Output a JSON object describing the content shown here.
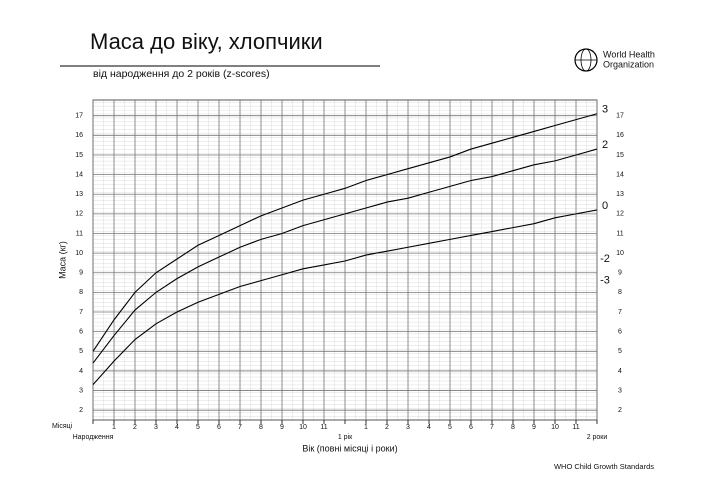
{
  "chart_data": {
    "type": "line",
    "title": "Маса до віку, хлопчики",
    "subtitle": "від народження до 2 років (z-scores)",
    "organization": [
      "World Health",
      "Organization"
    ],
    "y_label": "Маса (кг)",
    "x_label": "Вік (повні місяці і роки)",
    "x_unit_label": "Місяці",
    "footer": "WHO Child Growth Standards",
    "x": [
      0,
      1,
      2,
      3,
      4,
      5,
      6,
      7,
      8,
      9,
      10,
      11,
      12,
      13,
      14,
      15,
      16,
      17,
      18,
      19,
      20,
      21,
      22,
      23,
      24
    ],
    "xlim": [
      0,
      24
    ],
    "xticks": [
      1,
      2,
      3,
      4,
      5,
      6,
      7,
      8,
      9,
      10,
      11,
      {
        "value": 13,
        "label": "1"
      },
      {
        "value": 14,
        "label": "2"
      },
      {
        "value": 15,
        "label": "3"
      },
      {
        "value": 16,
        "label": "4"
      },
      {
        "value": 17,
        "label": "5"
      },
      {
        "value": 18,
        "label": "6"
      },
      {
        "value": 19,
        "label": "7"
      },
      {
        "value": 20,
        "label": "8"
      },
      {
        "value": 21,
        "label": "9"
      },
      {
        "value": 22,
        "label": "10"
      },
      {
        "value": 23,
        "label": "11"
      }
    ],
    "xticks_major": [
      {
        "value": 0,
        "label": "Народження"
      },
      {
        "value": 12,
        "label": "1 рік"
      },
      {
        "value": 24,
        "label": "2 роки"
      }
    ],
    "ylim": [
      1.5,
      17.8
    ],
    "yticks": [
      2,
      3,
      4,
      5,
      6,
      7,
      8,
      9,
      10,
      11,
      12,
      13,
      14,
      15,
      16,
      17
    ],
    "grid": true,
    "series": [
      {
        "name": "3",
        "color": "#000000",
        "values": [
          5.0,
          6.6,
          8.0,
          9.0,
          9.7,
          10.4,
          10.9,
          11.4,
          11.9,
          12.3,
          12.7,
          13.0,
          13.3,
          13.7,
          14.0,
          14.3,
          14.6,
          14.9,
          15.3,
          15.6,
          15.9,
          16.2,
          16.5,
          16.8,
          17.1
        ]
      },
      {
        "name": "2",
        "color": "#000000",
        "values": [
          4.4,
          5.8,
          7.1,
          8.0,
          8.7,
          9.3,
          9.8,
          10.3,
          10.7,
          11.0,
          11.4,
          11.7,
          12.0,
          12.3,
          12.6,
          12.8,
          13.1,
          13.4,
          13.7,
          13.9,
          14.2,
          14.5,
          14.7,
          15.0,
          15.3
        ]
      },
      {
        "name": "0",
        "color": "#000000",
        "values": [
          3.3,
          4.5,
          5.6,
          6.4,
          7.0,
          7.5,
          7.9,
          8.3,
          8.6,
          8.9,
          9.2,
          9.4,
          9.6,
          9.9,
          10.1,
          10.3,
          10.5,
          10.7,
          10.9,
          11.1,
          11.3,
          11.5,
          11.8,
          12.0,
          12.2
        ]
      }
    ],
    "extra_labels": [
      {
        "label": "-2",
        "value": 9.7
      },
      {
        "label": "-3",
        "value": 8.6
      }
    ]
  }
}
